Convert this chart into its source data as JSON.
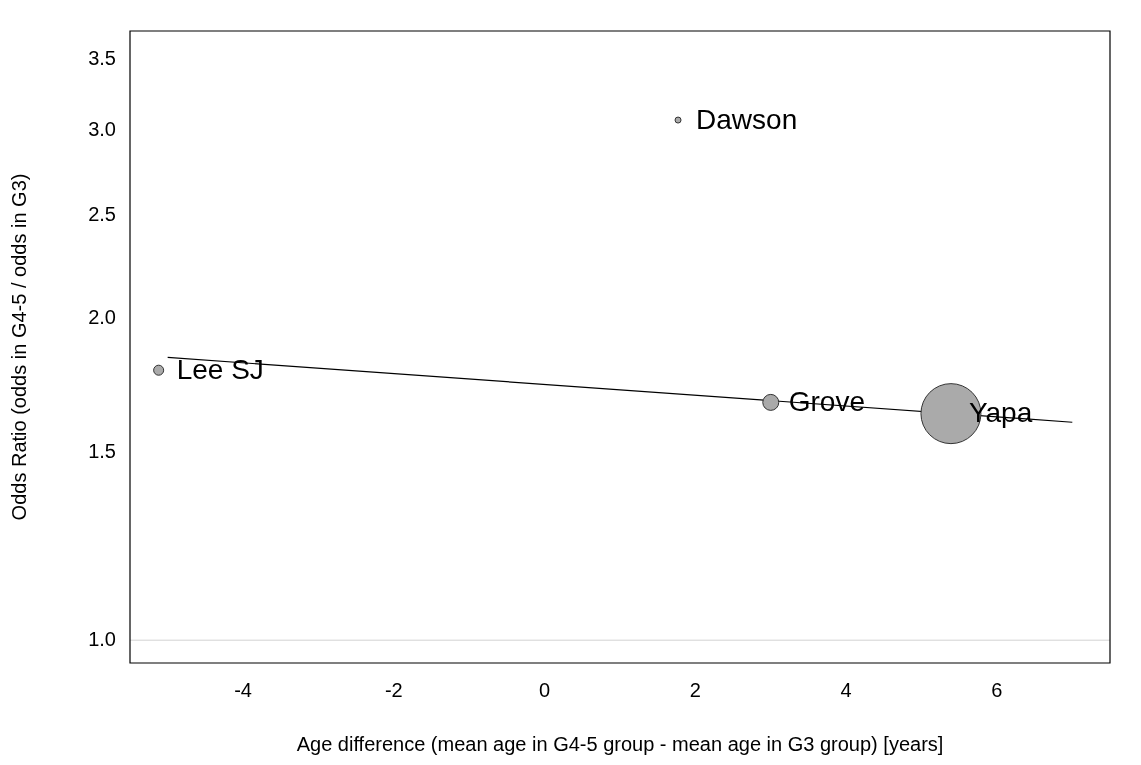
{
  "chart_data": {
    "type": "bubble",
    "xlabel": "Age difference (mean age in G4-5 group - mean age in G3 group) [years]",
    "ylabel": "Odds Ratio (odds in G4-5 / odds in G3)",
    "log": "y",
    "xlim": [
      -5.5,
      7.5
    ],
    "xticks": [
      -4,
      -2,
      0,
      2,
      4,
      6
    ],
    "ylim": [
      0.952,
      3.72
    ],
    "yticks": [
      {
        "value": 1,
        "label": "1.0"
      },
      1.5,
      {
        "value": 2,
        "label": "2.0"
      },
      2.5,
      {
        "value": 3,
        "label": "3.0"
      },
      3.5
    ],
    "grid": false,
    "legend": false,
    "series": [
      {
        "color": "#aaaaaa",
        "x": [
          -5.12,
          1.77,
          3.0,
          5.39
        ],
        "values": [
          1.79,
          3.07,
          1.67,
          1.63
        ],
        "sizes": [
          0.028,
          0.01,
          0.071,
          1
        ]
      },
      {
        "type": "line",
        "color": "#000000",
        "marker": "none",
        "x": [
          -5.0,
          7.0
        ],
        "values": [
          1.84,
          1.6
        ]
      }
    ],
    "ref_lines": [
      {
        "axis": "y",
        "value": 1.0,
        "color": "#d3d3d3"
      }
    ],
    "annotations": [
      {
        "text": "Lee SJ",
        "x": -5.12,
        "y": 1.79
      },
      {
        "text": "Dawson",
        "x": 1.77,
        "y": 3.07
      },
      {
        "text": "Grove",
        "x": 3.0,
        "y": 1.67
      },
      {
        "text": "Yapa",
        "x": 5.39,
        "y": 1.63
      }
    ]
  }
}
